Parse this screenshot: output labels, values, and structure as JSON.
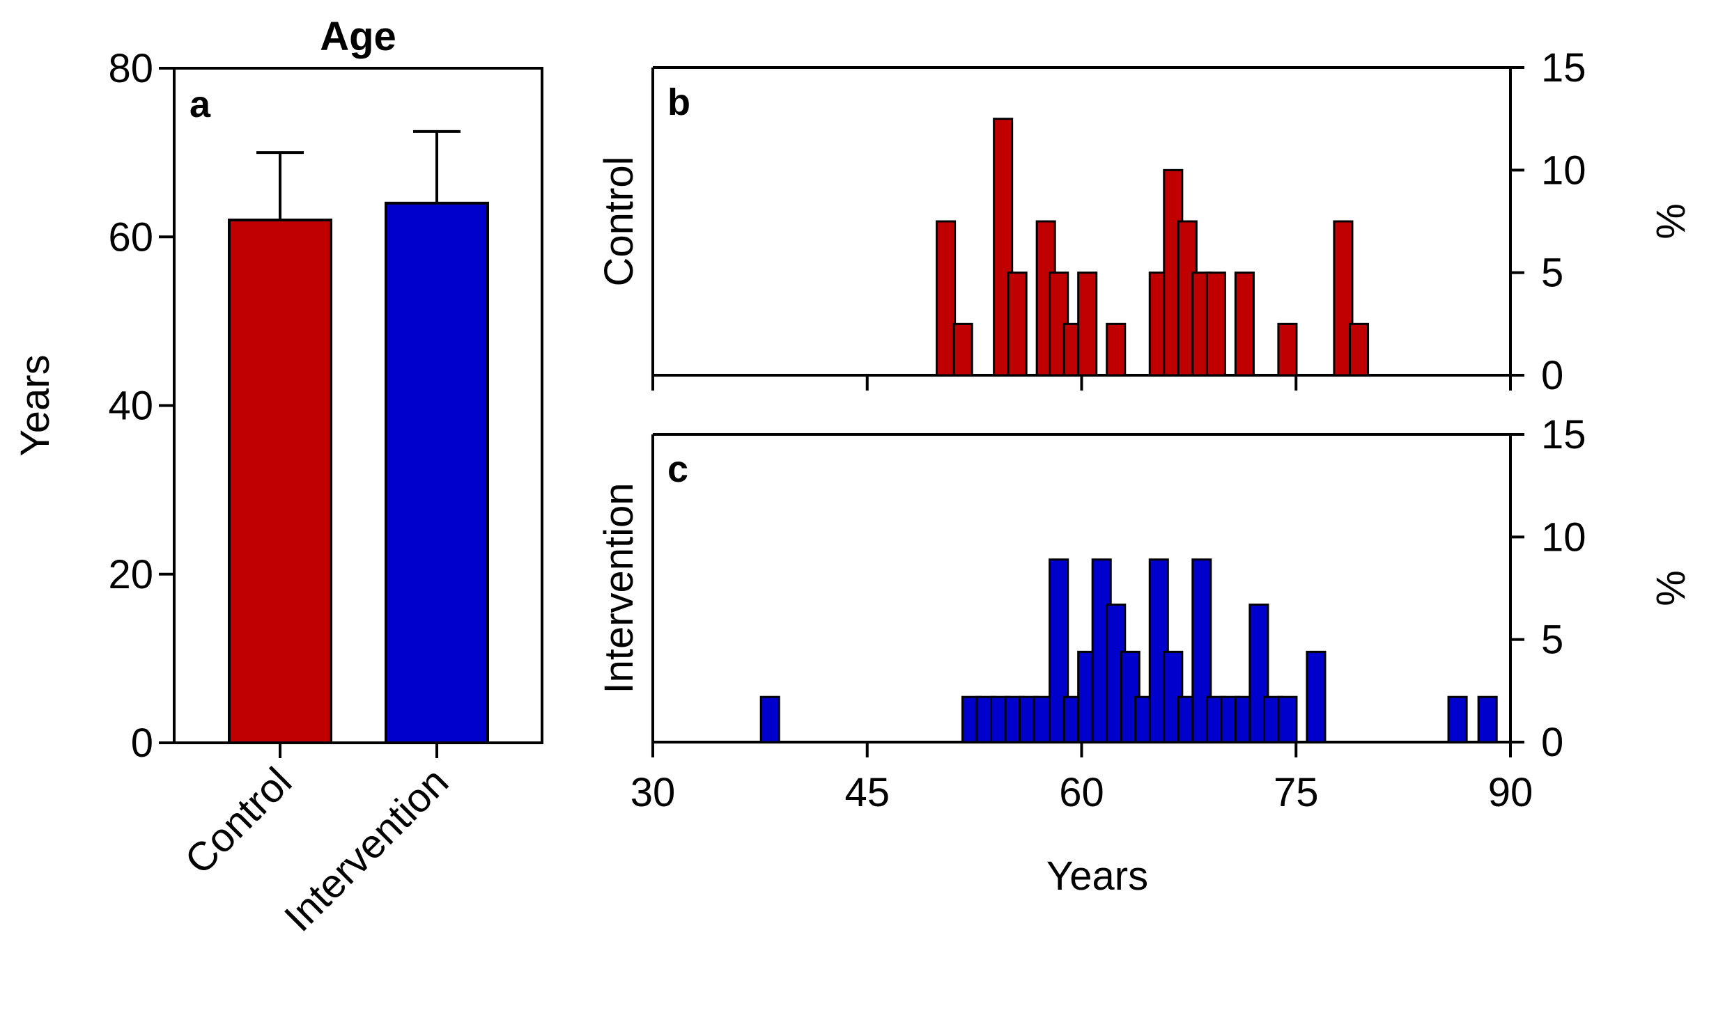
{
  "chart_data": [
    {
      "panel": "a",
      "type": "bar",
      "title": "Age",
      "ylabel": "Years",
      "ylim": [
        0,
        80
      ],
      "yticks": [
        0,
        20,
        40,
        60,
        80
      ],
      "categories": [
        "Control",
        "Intervention"
      ],
      "values": [
        62,
        64
      ],
      "errors": [
        8,
        8.5
      ],
      "colors": [
        "#c00000",
        "#0000cc"
      ]
    },
    {
      "panel": "b",
      "type": "bar",
      "group_label": "Control",
      "ylabel": "%",
      "ylim": [
        0,
        15
      ],
      "yticks": [
        0,
        5,
        10,
        15
      ],
      "xlim": [
        30,
        90
      ],
      "xticks": [
        30,
        45,
        60,
        75,
        90
      ],
      "bin_width": 1.27,
      "color": "#c00000",
      "x": [
        50.5,
        51.7,
        54.5,
        55.5,
        57.5,
        58.4,
        59.4,
        60.4,
        62.4,
        65.4,
        66.4,
        67.4,
        68.4,
        69.4,
        71.4,
        74.4,
        78.3,
        79.4
      ],
      "values": [
        7.5,
        2.5,
        12.5,
        5,
        7.5,
        5,
        2.5,
        5,
        2.5,
        5,
        10,
        7.5,
        5,
        5,
        5,
        2.5,
        7.5,
        2.5
      ]
    },
    {
      "panel": "c",
      "type": "bar",
      "group_label": "Intervention",
      "ylabel": "%",
      "xlabel": "Years",
      "ylim": [
        0,
        15
      ],
      "yticks": [
        0,
        5,
        10,
        15
      ],
      "xlim": [
        30,
        90
      ],
      "xticks": [
        30,
        45,
        60,
        75,
        90
      ],
      "tick_labels": [
        "30",
        "45",
        "60",
        "75",
        "90"
      ],
      "bin_width": 1.27,
      "color": "#0000cc",
      "x": [
        38.2,
        52.3,
        53.3,
        54.3,
        55.3,
        56.3,
        57.3,
        58.4,
        59.4,
        60.4,
        61.4,
        62.4,
        63.4,
        64.4,
        65.4,
        66.4,
        67.4,
        68.4,
        69.4,
        70.4,
        71.4,
        72.4,
        73.4,
        74.4,
        76.4,
        86.3,
        88.4
      ],
      "values": [
        2.2,
        2.2,
        2.2,
        2.2,
        2.2,
        2.2,
        2.2,
        8.9,
        2.2,
        4.4,
        8.9,
        6.7,
        4.4,
        2.2,
        8.9,
        4.4,
        2.2,
        8.9,
        2.2,
        2.2,
        2.2,
        6.7,
        2.2,
        2.2,
        4.4,
        2.2,
        2.2
      ]
    }
  ]
}
